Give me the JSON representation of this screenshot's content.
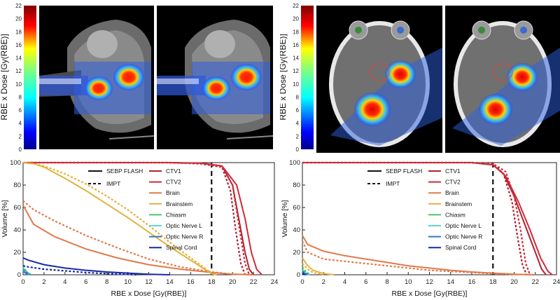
{
  "colorbar": {
    "label": "RBE x Dose [Gy(RBE)]",
    "ticks": [
      "0",
      "2",
      "4",
      "6",
      "8",
      "10",
      "12",
      "14",
      "16",
      "18",
      "20",
      "22"
    ],
    "max": 22
  },
  "chart_data": [
    {
      "type": "line",
      "xlabel": "RBE x Dose [Gy(RBE)]",
      "ylabel": "Volume [%]",
      "xlim": [
        0,
        24
      ],
      "ylim": [
        0,
        100
      ],
      "xticks": [
        "0",
        "2",
        "4",
        "6",
        "8",
        "10",
        "12",
        "14",
        "16",
        "18",
        "20",
        "22",
        "24"
      ],
      "yticks": [
        "0",
        "20",
        "40",
        "60",
        "80",
        "100"
      ],
      "reference_dose": 18,
      "style_legend": [
        {
          "name": "SEBP FLASH",
          "dash": "solid"
        },
        {
          "name": "IMPT",
          "dash": "dashed"
        }
      ],
      "series": [
        {
          "name": "CTV1",
          "color": "#b5202e",
          "flash": [
            [
              0,
              100
            ],
            [
              14,
              100
            ],
            [
              17,
              99.5
            ],
            [
              19,
              97
            ],
            [
              20,
              80
            ],
            [
              20.6,
              50
            ],
            [
              21.2,
              20
            ],
            [
              21.6,
              5
            ],
            [
              22,
              0
            ]
          ],
          "impt": [
            [
              0,
              100
            ],
            [
              14,
              100
            ],
            [
              17,
              99
            ],
            [
              19,
              96
            ],
            [
              19.8,
              75
            ],
            [
              20.3,
              40
            ],
            [
              20.8,
              10
            ],
            [
              21.2,
              0
            ]
          ]
        },
        {
          "name": "CTV2",
          "color": "#cf2a3b",
          "flash": [
            [
              0,
              100
            ],
            [
              14,
              100
            ],
            [
              17,
              99.5
            ],
            [
              19,
              97
            ],
            [
              20.4,
              80
            ],
            [
              21.2,
              50
            ],
            [
              21.8,
              20
            ],
            [
              22.3,
              5
            ],
            [
              22.8,
              0
            ]
          ],
          "impt": [
            [
              0,
              100
            ],
            [
              14,
              100
            ],
            [
              17,
              99
            ],
            [
              19,
              96
            ],
            [
              20,
              80
            ],
            [
              20.6,
              45
            ],
            [
              21.2,
              10
            ],
            [
              21.6,
              0
            ]
          ]
        },
        {
          "name": "Brain",
          "color": "#e07a4a",
          "flash": [
            [
              0,
              62
            ],
            [
              1,
              45
            ],
            [
              3,
              34
            ],
            [
              6,
              23
            ],
            [
              9,
              15
            ],
            [
              12,
              9
            ],
            [
              15,
              5
            ],
            [
              18,
              2
            ],
            [
              20,
              0.5
            ],
            [
              22,
              0
            ]
          ],
          "impt": [
            [
              0,
              66
            ],
            [
              1,
              58
            ],
            [
              3,
              48
            ],
            [
              6,
              35
            ],
            [
              9,
              24
            ],
            [
              12,
              14
            ],
            [
              15,
              7
            ],
            [
              18,
              2.5
            ],
            [
              20,
              0.5
            ],
            [
              22,
              0
            ]
          ]
        },
        {
          "name": "Brainstem",
          "color": "#e3b23c",
          "flash": [
            [
              0,
              100
            ],
            [
              1,
              99
            ],
            [
              2,
              96
            ],
            [
              4,
              86
            ],
            [
              6,
              75
            ],
            [
              8,
              63
            ],
            [
              10,
              51
            ],
            [
              12,
              38
            ],
            [
              14,
              25
            ],
            [
              16,
              13
            ],
            [
              17.5,
              4
            ],
            [
              18,
              1
            ],
            [
              18.5,
              0
            ]
          ],
          "impt": [
            [
              0,
              100
            ],
            [
              1,
              99
            ],
            [
              2,
              97
            ],
            [
              4,
              90
            ],
            [
              6,
              81
            ],
            [
              8,
              70
            ],
            [
              10,
              58
            ],
            [
              12,
              44
            ],
            [
              14,
              29
            ],
            [
              16,
              15
            ],
            [
              17.5,
              5
            ],
            [
              18,
              1
            ],
            [
              18.5,
              0
            ]
          ]
        },
        {
          "name": "Chiasm",
          "color": "#4fc46a",
          "flash": [
            [
              0,
              6
            ],
            [
              0.3,
              2
            ],
            [
              0.6,
              0
            ]
          ],
          "impt": [
            [
              0,
              8
            ],
            [
              0.3,
              3
            ],
            [
              0.7,
              0
            ]
          ]
        },
        {
          "name": "Optic Nerve L",
          "color": "#5fd4d8",
          "flash": [
            [
              0,
              4
            ],
            [
              0.3,
              1
            ],
            [
              0.6,
              0
            ]
          ],
          "impt": [
            [
              0,
              6
            ],
            [
              0.4,
              2
            ],
            [
              0.8,
              0
            ]
          ]
        },
        {
          "name": "Optic Nerve R",
          "color": "#3478c8",
          "flash": [
            [
              0,
              3
            ],
            [
              0.3,
              1
            ],
            [
              0.5,
              0
            ]
          ],
          "impt": [
            [
              0,
              5
            ],
            [
              0.4,
              1.5
            ],
            [
              0.7,
              0
            ]
          ]
        },
        {
          "name": "Spinal Cord",
          "color": "#1a2aa6",
          "flash": [
            [
              0,
              15
            ],
            [
              0.5,
              13
            ],
            [
              2,
              9
            ],
            [
              4,
              6
            ],
            [
              6,
              4
            ],
            [
              8,
              2.5
            ],
            [
              10,
              1.5
            ],
            [
              12,
              0.5
            ],
            [
              14,
              0
            ]
          ],
          "impt": [
            [
              0,
              8
            ],
            [
              0.5,
              7
            ],
            [
              2,
              5
            ],
            [
              4,
              3.5
            ],
            [
              6,
              2
            ],
            [
              8,
              1
            ],
            [
              10,
              0.3
            ],
            [
              11,
              0
            ]
          ]
        }
      ]
    },
    {
      "type": "line",
      "xlabel": "RBE x Dose [Gy(RBE)]",
      "ylabel": "Volume [%]",
      "xlim": [
        0,
        24
      ],
      "ylim": [
        0,
        100
      ],
      "xticks": [
        "0",
        "2",
        "4",
        "6",
        "8",
        "10",
        "12",
        "14",
        "16",
        "18",
        "20",
        "22",
        "24"
      ],
      "yticks": [
        "0",
        "20",
        "40",
        "60",
        "80",
        "100"
      ],
      "reference_dose": 18,
      "style_legend": [
        {
          "name": "SEBP FLASH",
          "dash": "solid"
        },
        {
          "name": "IMPT",
          "dash": "dashed"
        }
      ],
      "series": [
        {
          "name": "CTV1",
          "color": "#b5202e",
          "flash": [
            [
              0,
              100
            ],
            [
              16,
              100
            ],
            [
              18,
              98
            ],
            [
              19,
              90
            ],
            [
              20,
              70
            ],
            [
              21,
              45
            ],
            [
              22,
              20
            ],
            [
              22.6,
              5
            ],
            [
              23,
              0
            ]
          ],
          "impt": [
            [
              0,
              100
            ],
            [
              16,
              100
            ],
            [
              18,
              99
            ],
            [
              19,
              90
            ],
            [
              19.8,
              65
            ],
            [
              20.3,
              35
            ],
            [
              20.8,
              8
            ],
            [
              21.2,
              0
            ]
          ]
        },
        {
          "name": "CTV2",
          "color": "#cf2a3b",
          "flash": [
            [
              0,
              100
            ],
            [
              16,
              100
            ],
            [
              18,
              98
            ],
            [
              19.2,
              88
            ],
            [
              20.4,
              65
            ],
            [
              21.5,
              40
            ],
            [
              22.5,
              15
            ],
            [
              23.2,
              3
            ],
            [
              23.6,
              0
            ]
          ],
          "impt": [
            [
              0,
              100
            ],
            [
              16,
              100
            ],
            [
              18,
              99
            ],
            [
              19.2,
              92
            ],
            [
              20,
              70
            ],
            [
              20.6,
              40
            ],
            [
              21.1,
              10
            ],
            [
              21.5,
              0
            ]
          ]
        },
        {
          "name": "Brain",
          "color": "#e07a4a",
          "flash": [
            [
              0,
              35
            ],
            [
              0.5,
              27
            ],
            [
              2,
              21
            ],
            [
              4,
              17
            ],
            [
              6,
              14
            ],
            [
              8,
              11
            ],
            [
              10,
              8
            ],
            [
              12,
              6
            ],
            [
              14,
              4
            ],
            [
              16,
              2.5
            ],
            [
              18,
              1.5
            ],
            [
              20,
              0.5
            ],
            [
              22,
              0
            ]
          ],
          "impt": [
            [
              0,
              30
            ],
            [
              0.5,
              20
            ],
            [
              2,
              14
            ],
            [
              4,
              12
            ],
            [
              6,
              10
            ],
            [
              8,
              8
            ],
            [
              10,
              6
            ],
            [
              12,
              4
            ],
            [
              14,
              3
            ],
            [
              16,
              2
            ],
            [
              18,
              1
            ],
            [
              20,
              0.3
            ],
            [
              22,
              0
            ]
          ]
        },
        {
          "name": "Brainstem",
          "color": "#e3b23c",
          "flash": [
            [
              0,
              15
            ],
            [
              0.5,
              8
            ],
            [
              1,
              4
            ],
            [
              2,
              1
            ],
            [
              3,
              0
            ]
          ],
          "impt": [
            [
              0,
              10
            ],
            [
              0.5,
              5
            ],
            [
              1,
              2
            ],
            [
              2,
              0
            ]
          ]
        },
        {
          "name": "Chiasm",
          "color": "#4fc46a",
          "flash": [
            [
              0,
              5
            ],
            [
              0.3,
              1
            ],
            [
              0.6,
              0
            ]
          ],
          "impt": [
            [
              0,
              7
            ],
            [
              0.4,
              2
            ],
            [
              0.8,
              0
            ]
          ]
        },
        {
          "name": "Optic Nerve L",
          "color": "#5fd4d8",
          "flash": [
            [
              0,
              3
            ],
            [
              0.3,
              1
            ],
            [
              0.6,
              0
            ]
          ],
          "impt": [
            [
              0,
              4
            ],
            [
              0.4,
              1
            ],
            [
              0.7,
              0
            ]
          ]
        },
        {
          "name": "Optic Nerve R",
          "color": "#3478c8",
          "flash": [
            [
              0,
              2
            ],
            [
              0.3,
              0.5
            ],
            [
              0.5,
              0
            ]
          ],
          "impt": [
            [
              0,
              3
            ],
            [
              0.4,
              1
            ],
            [
              0.6,
              0
            ]
          ]
        },
        {
          "name": "Spinal Cord",
          "color": "#1a2aa6",
          "flash": [
            [
              0,
              1
            ],
            [
              0.3,
              0
            ]
          ],
          "impt": [
            [
              0,
              1.5
            ],
            [
              0.3,
              0
            ]
          ]
        }
      ]
    }
  ]
}
